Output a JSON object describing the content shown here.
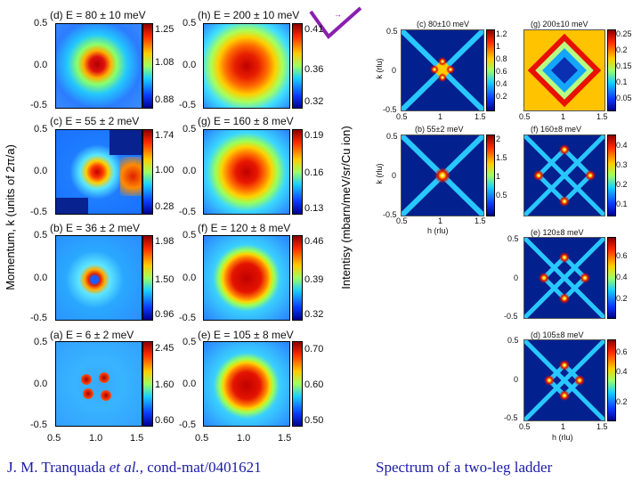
{
  "figure": {
    "left_panel": {
      "ylabel": "Momentum, k (units of 2π/a)",
      "colorbar_label": "Intentisy (mbarn/meV/sr/Cu ion)",
      "tick_labels": {
        "y_top": "0.5",
        "y_mid": "0.0",
        "y_bot": "-0.5",
        "x1": "0.5",
        "x2": "1.0",
        "x3": "1.5"
      },
      "panels": [
        {
          "title": "(d) E = 80 ± 10 meV",
          "cbar": [
            "1.25",
            "1.08",
            "0.88"
          ]
        },
        {
          "title": "(h) E = 200 ± 10 meV",
          "cbar": [
            "0.41",
            "0.36",
            "0.32"
          ]
        },
        {
          "title": "(c) E = 55 ± 2 meV",
          "cbar": [
            "1.74",
            "1.00",
            "0.28"
          ]
        },
        {
          "title": "(g) E = 160 ± 8 meV",
          "cbar": [
            "0.19",
            "0.16",
            "0.13"
          ]
        },
        {
          "title": "(b) E = 36 ± 2 meV",
          "cbar": [
            "1.98",
            "1.50",
            "0.96"
          ]
        },
        {
          "title": "(f) E = 120 ± 8 meV",
          "cbar": [
            "0.46",
            "0.39",
            "0.32"
          ]
        },
        {
          "title": "(a) E = 6 ± 2 meV",
          "cbar": [
            "2.45",
            "1.60",
            "0.60"
          ]
        },
        {
          "title": "(e) E = 105 ± 8 meV",
          "cbar": [
            "0.70",
            "0.60",
            "0.50"
          ]
        }
      ]
    },
    "right_panel": {
      "k_label": "k (rlu)",
      "h_label": "h (rlu)",
      "tick_labels": {
        "y_top": "0.5",
        "y_mid": "0",
        "y_bot": "-0.5",
        "x1": "0.5",
        "x2": "1",
        "x3": "1.5"
      },
      "panels": [
        {
          "title": "(c)  80±10 meV",
          "cbar": [
            "1.2",
            "1",
            "0.8",
            "0.6",
            "0.4",
            "0.2"
          ]
        },
        {
          "title": "(g)  200±10 meV",
          "cbar": [
            "0.25",
            "0.2",
            "0.15",
            "0.1",
            "0.05"
          ]
        },
        {
          "title": "(b)  55±2 meV",
          "cbar": [
            "2",
            "1.5",
            "1",
            "0.5"
          ]
        },
        {
          "title": "(f)  160±8 meV",
          "cbar": [
            "0.4",
            "0.3",
            "0.2",
            "0.1"
          ]
        },
        {
          "title": "(e)  120±8 meV",
          "cbar": [
            "0.6",
            "0.4",
            "0.2"
          ]
        },
        {
          "title": "(d)  105±8 meV",
          "cbar": [
            "0.6",
            "0.4",
            "0.2"
          ]
        }
      ]
    }
  },
  "captions": {
    "left_prefix": "J. M. Tranquada ",
    "left_italic": "et al.,",
    "left_suffix": " cond-mat/0401621",
    "right": "Spectrum of a two-leg ladder"
  }
}
